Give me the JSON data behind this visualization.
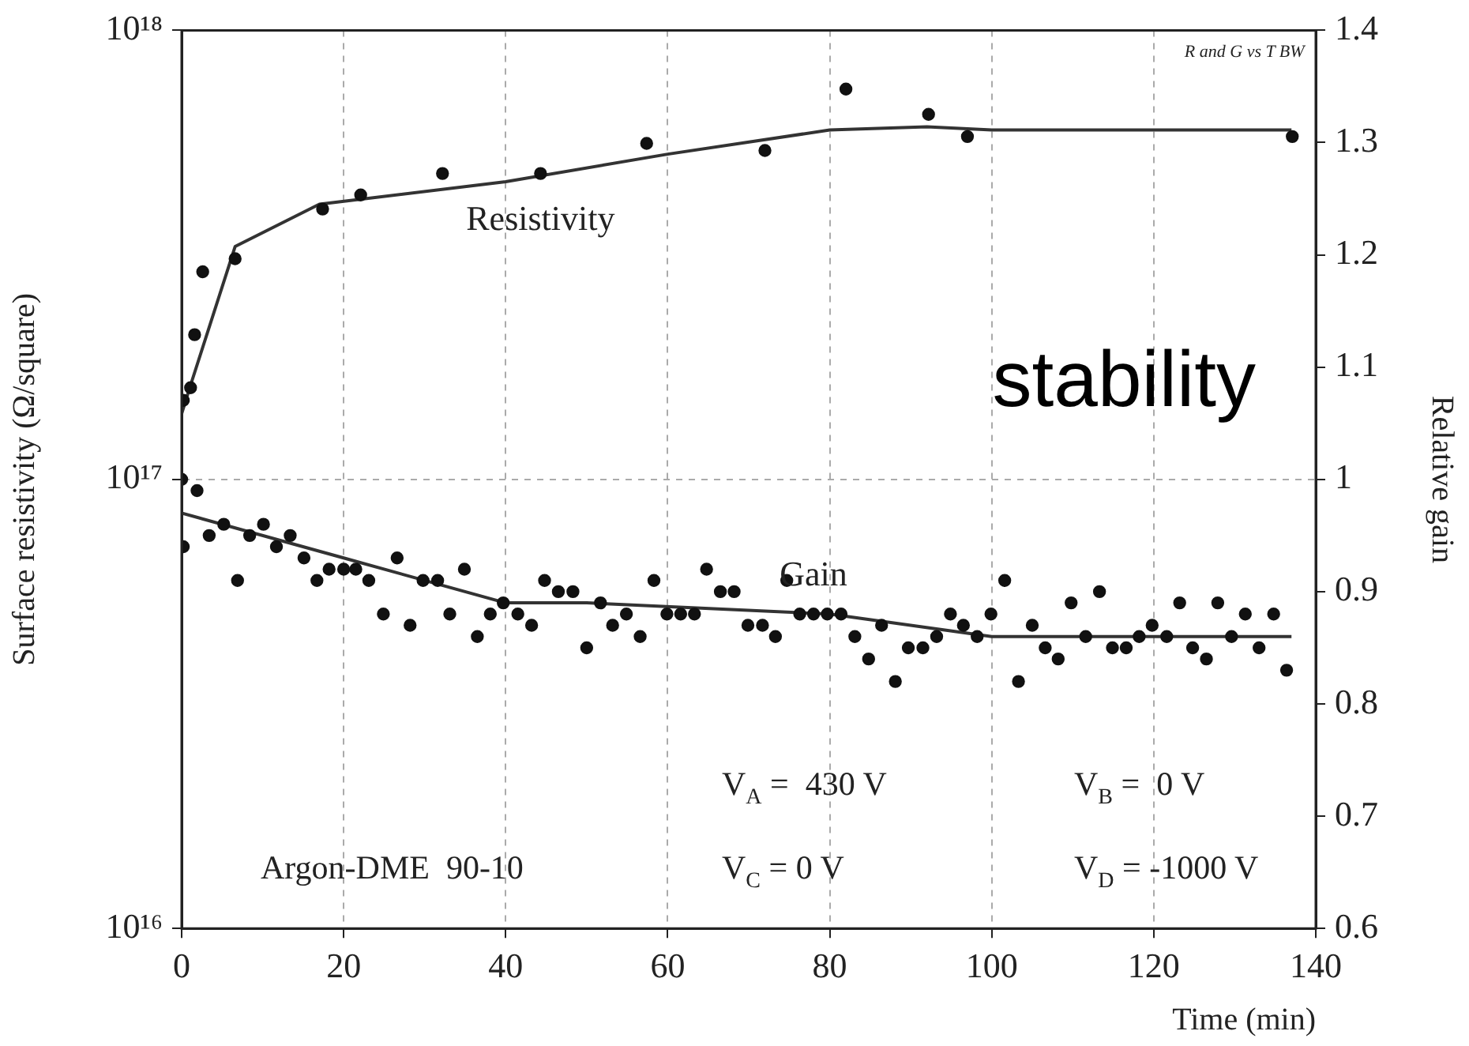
{
  "chart_data": {
    "type": "scatter",
    "xlabel": "Time (min)",
    "ylabel": "Surface resistivity (Ω/square)",
    "y2label": "Relative gain",
    "annotations": [
      "R and G vs T BW",
      "Argon-DME  90-10",
      "V$_{A}$ =  430 V",
      "V$_{B}$ =  0 V",
      "V$_{C}$ = 0 V",
      "V$_{D}$ = -1000 V",
      "stability"
    ],
    "xlim": [
      0,
      140
    ],
    "xticks": [
      0,
      20,
      40,
      60,
      80,
      100,
      120,
      140
    ],
    "ylim": [
      1e+16,
      1e+18
    ],
    "yticks": [
      {
        "value": 1e+16,
        "label": "10¹⁶"
      },
      {
        "value": 1e+17,
        "label": "10¹⁷"
      },
      {
        "value": 1e+18,
        "label": "10¹⁸"
      }
    ],
    "y2lim": [
      0.6,
      1.4
    ],
    "y2ticks": [
      0.6,
      0.7,
      0.8,
      0.9,
      1,
      1.1,
      1.2,
      1.3,
      1.4
    ],
    "log": "y",
    "grid": true,
    "legend": false,
    "marker": "circle",
    "line_style": "solid",
    "series": [
      {
        "name": "Resistivity",
        "color": "#111111",
        "x": [
          0.2,
          1.1,
          1.6,
          2.6,
          6.6,
          17.4,
          22.1,
          32.2,
          44.3,
          57.4,
          72,
          82,
          92.2,
          97,
          137.1
        ],
        "values": [
          1.5e+17,
          1.6e+17,
          2.1e+17,
          2.9e+17,
          3.1e+17,
          4e+17,
          4.3e+17,
          4.8e+17,
          4.8e+17,
          5.6e+17,
          5.4e+17,
          7.4e+17,
          6.5e+17,
          5.8e+17,
          5.8e+17
        ]
      },
      {
        "type": "line",
        "marker": "none",
        "color": "#333333",
        "x": [
          0,
          1,
          6.6,
          17,
          40,
          60,
          80,
          92,
          100,
          137
        ],
        "values": [
          1.4e+17,
          1.6e+17,
          3.3e+17,
          4.1e+17,
          4.6e+17,
          5.3e+17,
          6e+17,
          6.1e+17,
          6e+17,
          6e+17
        ]
      },
      {
        "name": "Gain",
        "color": "#111111",
        "axis": "y2",
        "x": [
          0,
          0.2,
          1.9,
          3.4,
          5.2,
          6.9,
          8.4,
          10.1,
          11.7,
          13.4,
          15.1,
          16.7,
          18.2,
          20,
          21.5,
          23.1,
          24.9,
          26.6,
          28.2,
          29.8,
          31.6,
          33.1,
          34.9,
          36.5,
          38.1,
          39.7,
          41.5,
          43.2,
          44.8,
          46.5,
          48.3,
          50,
          51.7,
          53.2,
          54.9,
          56.6,
          58.3,
          59.9,
          61.6,
          63.3,
          64.8,
          66.5,
          68.2,
          69.9,
          71.7,
          73.3,
          74.7,
          76.3,
          78,
          79.7,
          81.4,
          83.1,
          84.8,
          86.4,
          88.1,
          89.7,
          91.5,
          93.2,
          94.9,
          96.5,
          98.2,
          99.9,
          101.6,
          103.3,
          105,
          106.6,
          108.2,
          109.8,
          111.6,
          113.3,
          114.9,
          116.6,
          118.2,
          119.8,
          121.6,
          123.2,
          124.8,
          126.5,
          127.9,
          129.6,
          131.3,
          133,
          134.8,
          136.4
        ],
        "values": [
          1.0,
          0.94,
          0.99,
          0.95,
          0.96,
          0.91,
          0.95,
          0.96,
          0.94,
          0.95,
          0.93,
          0.91,
          0.92,
          0.92,
          0.92,
          0.91,
          0.88,
          0.93,
          0.87,
          0.91,
          0.91,
          0.88,
          0.92,
          0.86,
          0.88,
          0.89,
          0.88,
          0.87,
          0.91,
          0.9,
          0.9,
          0.85,
          0.89,
          0.87,
          0.88,
          0.86,
          0.91,
          0.88,
          0.88,
          0.88,
          0.92,
          0.9,
          0.9,
          0.87,
          0.87,
          0.86,
          0.91,
          0.88,
          0.88,
          0.88,
          0.88,
          0.86,
          0.84,
          0.87,
          0.82,
          0.85,
          0.85,
          0.86,
          0.88,
          0.87,
          0.86,
          0.88,
          0.91,
          0.82,
          0.87,
          0.85,
          0.84,
          0.89,
          0.86,
          0.9,
          0.85,
          0.85,
          0.86,
          0.87,
          0.86,
          0.89,
          0.85,
          0.84,
          0.89,
          0.86,
          0.88,
          0.85,
          0.88,
          0.83
        ]
      },
      {
        "type": "line",
        "marker": "none",
        "color": "#333333",
        "axis": "y2",
        "x": [
          0,
          20,
          40,
          50,
          80,
          100,
          137
        ],
        "values": [
          0.97,
          0.93,
          0.89,
          0.89,
          0.88,
          0.86,
          0.86
        ]
      }
    ]
  }
}
